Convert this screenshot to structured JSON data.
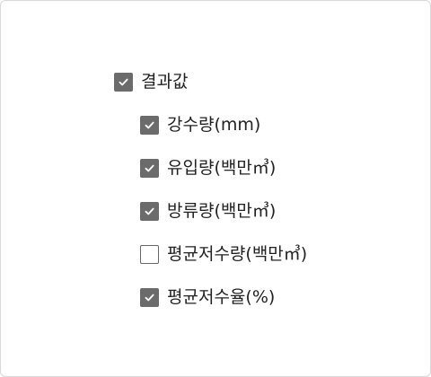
{
  "tree": {
    "parent": {
      "label": "결과값",
      "checked": true
    },
    "children": [
      {
        "label": "강수량(mm)",
        "checked": true
      },
      {
        "label": "유입량(백만㎥)",
        "checked": true
      },
      {
        "label": "방류량(백만㎥)",
        "checked": true
      },
      {
        "label": "평균저수량(백만㎥)",
        "checked": false
      },
      {
        "label": "평균저수율(%)",
        "checked": true
      }
    ]
  },
  "colors": {
    "checkbox_fill": "#6b6b6b",
    "checkbox_border": "#666666",
    "check_mark": "#ffffff",
    "text": "#222222",
    "frame_border": "#d9d9d9"
  },
  "icons": {
    "checked": "check-icon",
    "unchecked": "empty-box"
  }
}
